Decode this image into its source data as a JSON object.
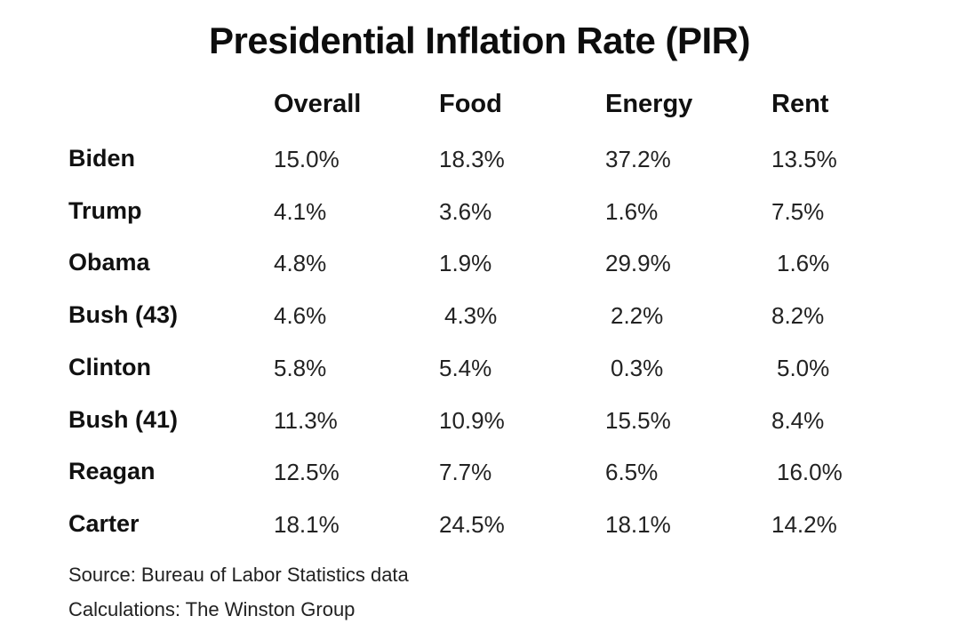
{
  "chart_data": {
    "type": "table",
    "title": "Presidential Inflation Rate (PIR)",
    "columns": [
      "Overall",
      "Food",
      "Energy",
      "Rent"
    ],
    "rows": [
      {
        "name": "Biden",
        "values": [
          "15.0%",
          "18.3%",
          "37.2%",
          "13.5%"
        ]
      },
      {
        "name": "Trump",
        "values": [
          "4.1%",
          "3.6%",
          "1.6%",
          "7.5%"
        ]
      },
      {
        "name": "Obama",
        "values": [
          "4.8%",
          "1.9%",
          "29.9%",
          "1.6%"
        ]
      },
      {
        "name": "Bush  (43)",
        "values": [
          "4.6%",
          "4.3%",
          "2.2%",
          "8.2%"
        ]
      },
      {
        "name": "Clinton",
        "values": [
          "5.8%",
          "5.4%",
          "0.3%",
          "5.0%"
        ]
      },
      {
        "name": "Bush (41)",
        "values": [
          "11.3%",
          "10.9%",
          "15.5%",
          "8.4%"
        ]
      },
      {
        "name": "Reagan",
        "values": [
          "12.5%",
          "7.7%",
          "6.5%",
          "16.0%"
        ]
      },
      {
        "name": "Carter",
        "values": [
          "18.1%",
          "24.5%",
          "18.1%",
          "14.2%"
        ]
      }
    ],
    "notes": [
      "Source: Bureau of Labor Statistics data",
      "Calculations: The Winston Group"
    ]
  }
}
